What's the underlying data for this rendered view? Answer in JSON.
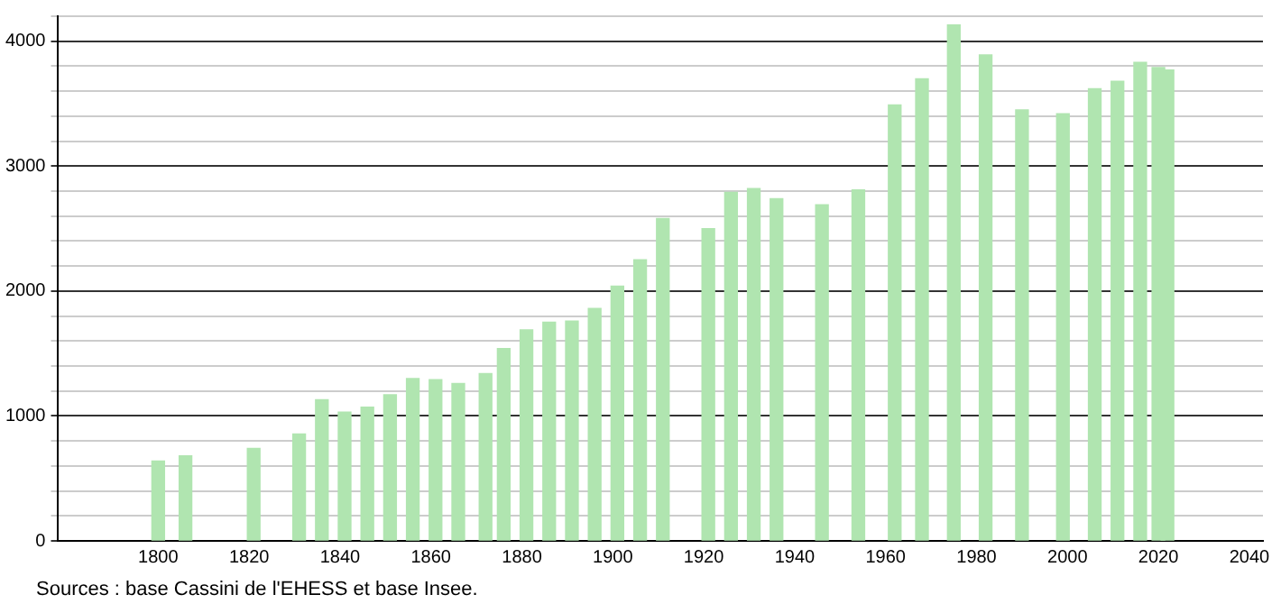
{
  "chart_data": {
    "type": "bar",
    "annotations": [
      "Sources : base Cassini de l'EHESS et base Insee."
    ],
    "x": [
      1800,
      1806,
      1821,
      1831,
      1836,
      1841,
      1846,
      1851,
      1856,
      1861,
      1866,
      1872,
      1876,
      1881,
      1886,
      1891,
      1896,
      1901,
      1906,
      1911,
      1921,
      1926,
      1931,
      1936,
      1946,
      1954,
      1962,
      1968,
      1975,
      1982,
      1990,
      1999,
      2006,
      2011,
      2016,
      2020,
      2022
    ],
    "values": [
      640,
      680,
      740,
      855,
      1130,
      1030,
      1070,
      1170,
      1300,
      1290,
      1260,
      1340,
      1540,
      1690,
      1750,
      1760,
      1860,
      2040,
      2250,
      2580,
      2500,
      2790,
      2820,
      2740,
      2690,
      2810,
      3490,
      3700,
      4130,
      3890,
      3450,
      3420,
      3620,
      3680,
      3830,
      3790,
      3770
    ],
    "color": "#b0e5b0",
    "xlim": [
      1778,
      2043
    ],
    "xticks": [
      1800,
      1820,
      1840,
      1860,
      1880,
      1900,
      1920,
      1940,
      1960,
      1980,
      2000,
      2020,
      2040
    ],
    "ylim": [
      0,
      4200
    ],
    "yticks": [
      0,
      {
        "value": 200,
        "label": null
      },
      {
        "value": 400,
        "label": null
      },
      {
        "value": 600,
        "label": null
      },
      {
        "value": 800,
        "label": null
      },
      1000,
      {
        "value": 1200,
        "label": null
      },
      {
        "value": 1400,
        "label": null
      },
      {
        "value": 1600,
        "label": null
      },
      {
        "value": 1800,
        "label": null
      },
      2000,
      {
        "value": 2200,
        "label": null
      },
      {
        "value": 2400,
        "label": null
      },
      {
        "value": 2600,
        "label": null
      },
      {
        "value": 2800,
        "label": null
      },
      3000,
      {
        "value": 3200,
        "label": null
      },
      {
        "value": 3400,
        "label": null
      },
      {
        "value": 3600,
        "label": null
      },
      {
        "value": 3800,
        "label": null
      },
      4000,
      {
        "value": 4200,
        "label": null
      }
    ],
    "grid": "y"
  }
}
